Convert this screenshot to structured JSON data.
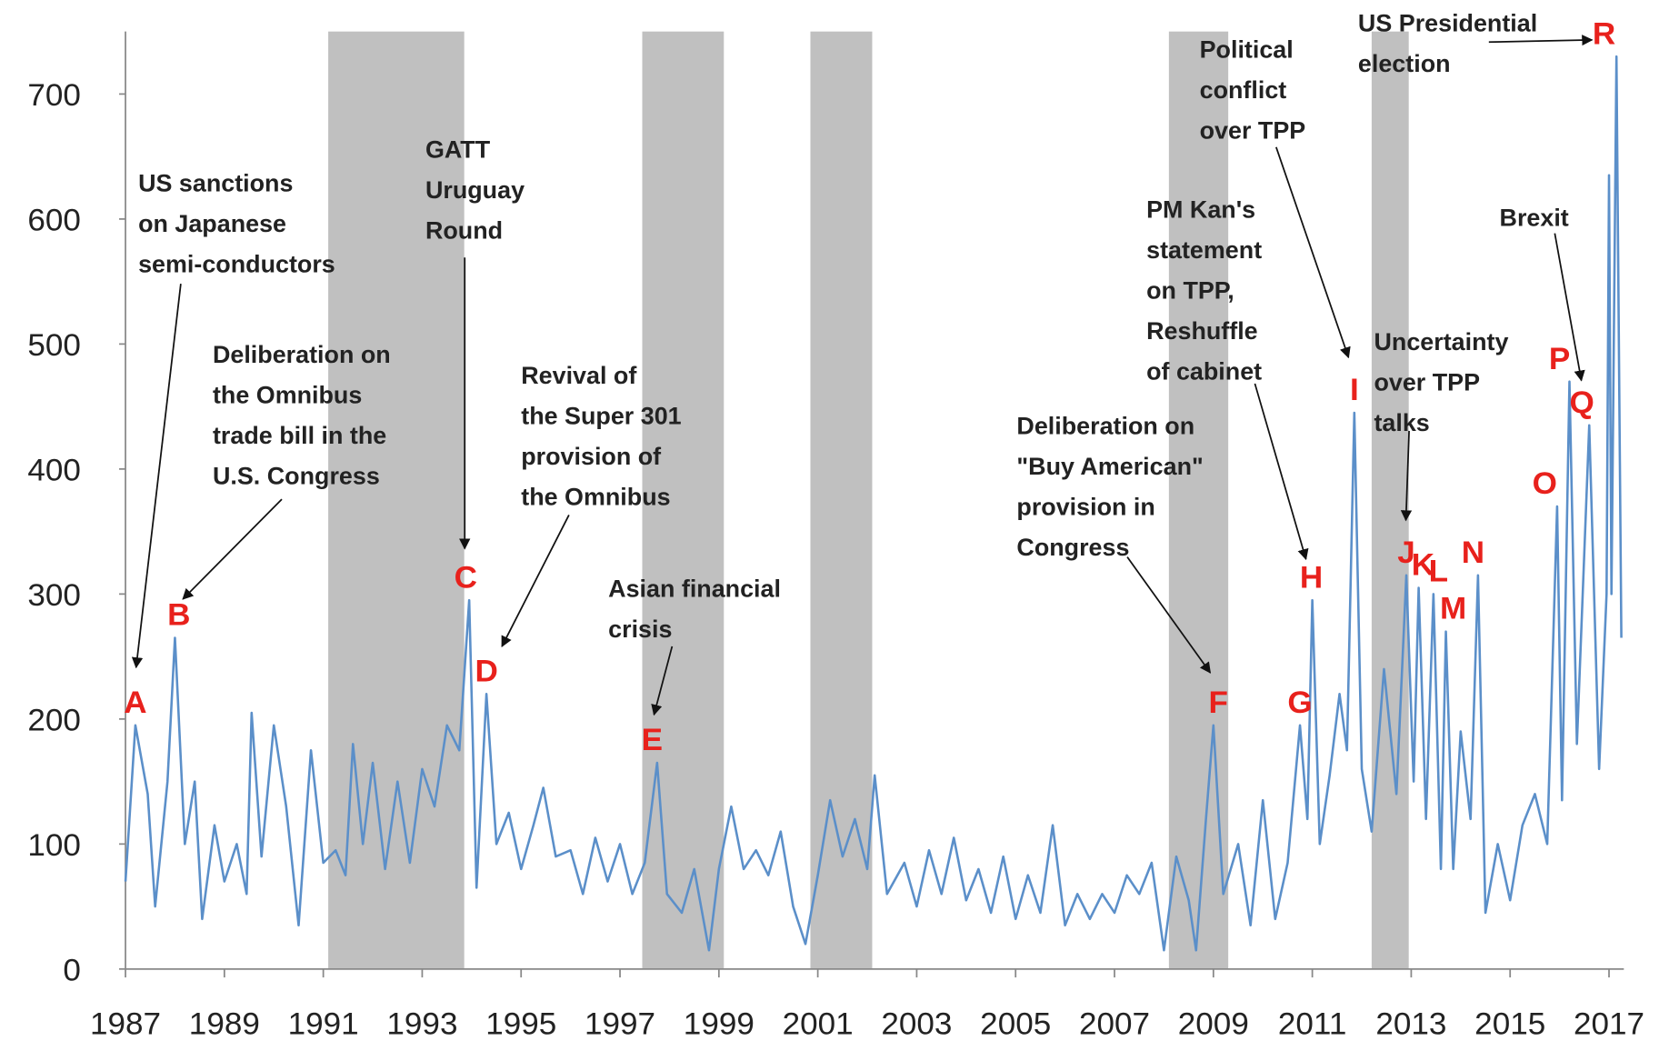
{
  "chart_data": {
    "type": "line",
    "color": "#5b8fc9",
    "shade_color": "#c0c0c0",
    "xlim": [
      1987,
      2017.3
    ],
    "ylim": [
      0,
      750
    ],
    "xticks": [
      1987,
      1989,
      1991,
      1993,
      1995,
      1997,
      1999,
      2001,
      2003,
      2005,
      2007,
      2009,
      2011,
      2013,
      2015,
      2017
    ],
    "yticks": [
      0,
      100,
      200,
      300,
      400,
      500,
      600,
      700
    ],
    "shaded_periods": [
      {
        "start": 1991.1,
        "end": 1993.85
      },
      {
        "start": 1997.45,
        "end": 1999.1
      },
      {
        "start": 2000.85,
        "end": 2002.1
      },
      {
        "start": 2008.1,
        "end": 2009.3
      },
      {
        "start": 2012.2,
        "end": 2012.95
      }
    ],
    "x": [
      1987.0,
      1987.2,
      1987.45,
      1987.6,
      1987.85,
      1988.0,
      1988.2,
      1988.4,
      1988.55,
      1988.8,
      1989.0,
      1989.25,
      1989.45,
      1989.55,
      1989.75,
      1990.0,
      1990.25,
      1990.5,
      1990.75,
      1991.0,
      1991.25,
      1991.45,
      1991.6,
      1991.8,
      1992.0,
      1992.25,
      1992.5,
      1992.75,
      1993.0,
      1993.25,
      1993.5,
      1993.75,
      1993.95,
      1994.1,
      1994.3,
      1994.5,
      1994.75,
      1995.0,
      1995.25,
      1995.45,
      1995.7,
      1996.0,
      1996.25,
      1996.5,
      1996.75,
      1997.0,
      1997.25,
      1997.5,
      1997.75,
      1997.95,
      1998.25,
      1998.5,
      1998.8,
      1999.0,
      1999.25,
      1999.5,
      1999.75,
      2000.0,
      2000.25,
      2000.5,
      2000.75,
      2001.0,
      2001.25,
      2001.5,
      2001.75,
      2002.0,
      2002.15,
      2002.4,
      2002.75,
      2003.0,
      2003.25,
      2003.5,
      2003.75,
      2004.0,
      2004.25,
      2004.5,
      2004.75,
      2005.0,
      2005.25,
      2005.5,
      2005.75,
      2006.0,
      2006.25,
      2006.5,
      2006.75,
      2007.0,
      2007.25,
      2007.5,
      2007.75,
      2008.0,
      2008.25,
      2008.5,
      2008.65,
      2008.85,
      2009.0,
      2009.2,
      2009.5,
      2009.75,
      2010.0,
      2010.25,
      2010.5,
      2010.75,
      2010.9,
      2011.0,
      2011.15,
      2011.35,
      2011.55,
      2011.7,
      2011.85,
      2012.0,
      2012.2,
      2012.45,
      2012.7,
      2012.9,
      2013.05,
      2013.15,
      2013.3,
      2013.45,
      2013.6,
      2013.7,
      2013.85,
      2014.0,
      2014.2,
      2014.35,
      2014.5,
      2014.75,
      2015.0,
      2015.25,
      2015.5,
      2015.75,
      2015.95,
      2016.05,
      2016.2,
      2016.35,
      2016.6,
      2016.8,
      2016.95,
      2017.0,
      2017.05,
      2017.15,
      2017.25
    ],
    "values": [
      70,
      195,
      140,
      50,
      150,
      265,
      100,
      150,
      40,
      115,
      70,
      100,
      60,
      205,
      90,
      195,
      130,
      35,
      175,
      85,
      95,
      75,
      180,
      100,
      165,
      80,
      150,
      85,
      160,
      130,
      195,
      175,
      295,
      65,
      220,
      100,
      125,
      80,
      115,
      145,
      90,
      95,
      60,
      105,
      70,
      100,
      60,
      85,
      165,
      60,
      45,
      80,
      15,
      80,
      130,
      80,
      95,
      75,
      110,
      50,
      20,
      75,
      135,
      90,
      120,
      80,
      155,
      60,
      85,
      50,
      95,
      60,
      105,
      55,
      80,
      45,
      90,
      40,
      75,
      45,
      115,
      35,
      60,
      40,
      60,
      45,
      75,
      60,
      85,
      15,
      90,
      55,
      15,
      120,
      195,
      60,
      100,
      35,
      135,
      40,
      85,
      195,
      120,
      295,
      100,
      155,
      220,
      175,
      445,
      160,
      110,
      240,
      140,
      315,
      150,
      305,
      120,
      300,
      80,
      270,
      80,
      190,
      120,
      315,
      45,
      100,
      55,
      115,
      140,
      100,
      370,
      135,
      470,
      180,
      435,
      160,
      300,
      635,
      300,
      730,
      265
    ],
    "events": [
      {
        "label": "A",
        "x": 1987.2,
        "value": 195
      },
      {
        "label": "B",
        "x": 1988.08,
        "value": 265
      },
      {
        "label": "C",
        "x": 1993.88,
        "value": 295
      },
      {
        "label": "D",
        "x": 1994.3,
        "value": 220
      },
      {
        "label": "E",
        "x": 1997.65,
        "value": 165
      },
      {
        "label": "F",
        "x": 2009.1,
        "value": 195
      },
      {
        "label": "G",
        "x": 2010.75,
        "value": 195
      },
      {
        "label": "H",
        "x": 2010.98,
        "value": 295
      },
      {
        "label": "I",
        "x": 2011.85,
        "value": 445
      },
      {
        "label": "J",
        "x": 2012.9,
        "value": 315
      },
      {
        "label": "K",
        "x": 2013.24,
        "value": 305
      },
      {
        "label": "L",
        "x": 2013.55,
        "value": 300
      },
      {
        "label": "M",
        "x": 2013.85,
        "value": 270
      },
      {
        "label": "N",
        "x": 2014.25,
        "value": 315
      },
      {
        "label": "O",
        "x": 2015.7,
        "value": 370
      },
      {
        "label": "P",
        "x": 2016.0,
        "value": 470
      },
      {
        "label": "Q",
        "x": 2016.45,
        "value": 435
      },
      {
        "label": "R",
        "x": 2016.9,
        "value": 730
      }
    ],
    "annotations": [
      {
        "text": [
          "US sanctions",
          "on Japanese",
          "semi-conductors"
        ]
      },
      {
        "text": [
          "Deliberation on",
          "the Omnibus",
          "trade bill in the",
          "U.S. Congress"
        ]
      },
      {
        "text": [
          "GATT",
          "Uruguay",
          "Round"
        ]
      },
      {
        "text": [
          "Revival of",
          "the Super 301",
          "provision of",
          "the Omnibus"
        ]
      },
      {
        "text": [
          "Asian financial",
          "crisis"
        ]
      },
      {
        "text": [
          "Deliberation on",
          "\"Buy American\"",
          "provision in",
          "Congress"
        ]
      },
      {
        "text": [
          "PM Kan's",
          "statement",
          "on TPP,",
          "Reshuffle",
          "of cabinet"
        ]
      },
      {
        "text": [
          "Political",
          "conflict",
          "over TPP"
        ]
      },
      {
        "text": [
          "Uncertainty",
          "over TPP",
          "talks"
        ]
      },
      {
        "text": [
          "Brexit"
        ]
      },
      {
        "text": [
          "US Presidential",
          "election"
        ]
      }
    ]
  }
}
